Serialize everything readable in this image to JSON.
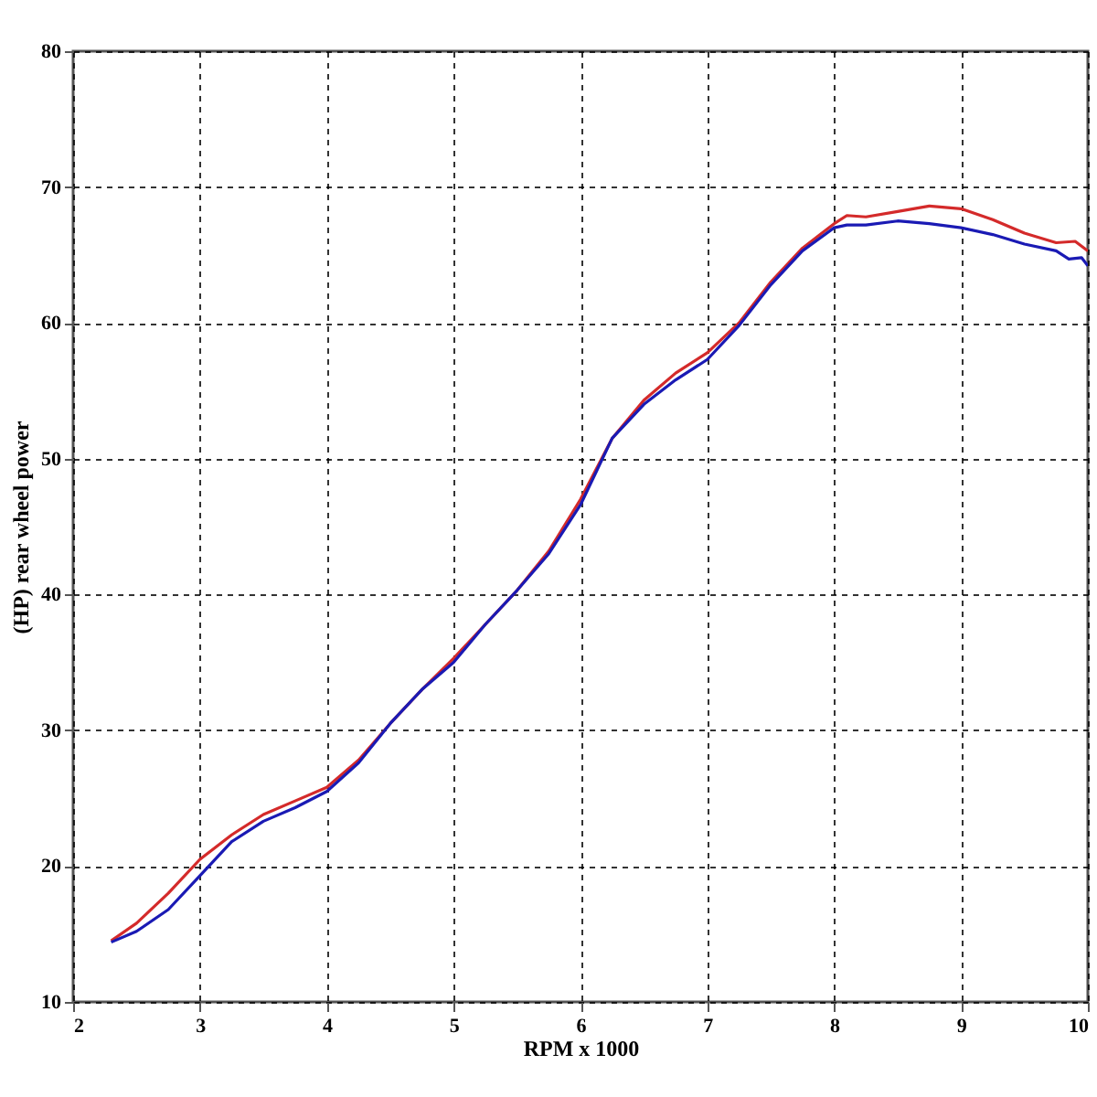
{
  "chart_data": {
    "type": "line",
    "xlabel": "RPM x 1000",
    "ylabel": "(HP) rear wheel power",
    "xlim": [
      2,
      10
    ],
    "ylim": [
      10,
      80
    ],
    "xticks": [
      2,
      3,
      4,
      5,
      6,
      7,
      8,
      9,
      10
    ],
    "yticks": [
      10,
      20,
      30,
      40,
      50,
      60,
      70,
      80
    ],
    "grid": true,
    "line_style": "solid",
    "series": [
      {
        "color": "#d42a2a",
        "x": [
          2.3,
          2.5,
          2.75,
          3.0,
          3.25,
          3.5,
          3.75,
          4.0,
          4.25,
          4.5,
          4.75,
          5.0,
          5.25,
          5.5,
          5.75,
          6.0,
          6.25,
          6.5,
          6.75,
          7.0,
          7.25,
          7.5,
          7.75,
          8.0,
          8.1,
          8.25,
          8.5,
          8.75,
          9.0,
          9.25,
          9.5,
          9.75,
          9.9,
          10.0
        ],
        "values": [
          14.5,
          15.8,
          18,
          20.5,
          22.3,
          23.8,
          24.8,
          25.8,
          27.8,
          30.5,
          33,
          35.3,
          37.8,
          40.3,
          43.2,
          47,
          51.5,
          54.3,
          56.3,
          57.8,
          60,
          63,
          65.5,
          67.3,
          67.9,
          67.8,
          68.2,
          68.6,
          68.4,
          67.6,
          66.6,
          65.9,
          66,
          65.3
        ]
      },
      {
        "color": "#1a1ab4",
        "x": [
          2.3,
          2.5,
          2.75,
          3.0,
          3.25,
          3.5,
          3.75,
          4.0,
          4.25,
          4.5,
          4.75,
          5.0,
          5.25,
          5.5,
          5.75,
          6.0,
          6.25,
          6.5,
          6.75,
          7.0,
          7.25,
          7.5,
          7.75,
          8.0,
          8.1,
          8.25,
          8.5,
          8.75,
          9.0,
          9.25,
          9.5,
          9.75,
          9.85,
          9.95,
          10.0
        ],
        "values": [
          14.4,
          15.2,
          16.8,
          19.3,
          21.8,
          23.3,
          24.3,
          25.5,
          27.6,
          30.5,
          33,
          35,
          37.8,
          40.3,
          43,
          46.6,
          51.5,
          54,
          55.8,
          57.3,
          59.8,
          62.8,
          65.3,
          67,
          67.2,
          67.2,
          67.5,
          67.3,
          67,
          66.5,
          65.8,
          65.3,
          64.7,
          64.8,
          64.2
        ]
      }
    ]
  }
}
